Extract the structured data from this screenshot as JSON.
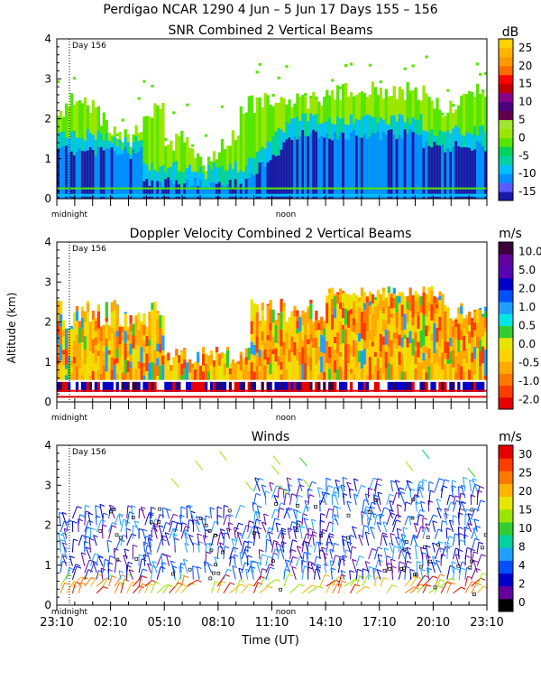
{
  "header": {
    "title": "Perdigao NCAR 1290    4 Jun –   5 Jun 17 Days 155 – 156"
  },
  "x_axis": {
    "label": "Time (UT)",
    "ticks": [
      "23:10",
      "02:10",
      "05:10",
      "08:10",
      "11:10",
      "14:10",
      "17:10",
      "20:10",
      "23:10"
    ],
    "midnight_label": "midnight",
    "noon_label": "noon",
    "day_label": "Day 156"
  },
  "chart_data": [
    {
      "type": "heatmap",
      "title": "SNR Combined 2 Vertical Beams",
      "ylabel": "",
      "ylim": [
        0,
        4
      ],
      "yticks": [
        "0",
        "1",
        "2",
        "3",
        "4"
      ],
      "colorbar": {
        "unit": "dB",
        "labels": [
          "-15",
          "-10",
          "-5",
          "0",
          "5",
          "10",
          "15",
          "20",
          "25"
        ],
        "colors": [
          "#1a1aa8",
          "#5a5aff",
          "#0090ff",
          "#00c0ff",
          "#00d2a0",
          "#00d25a",
          "#55e600",
          "#9ae600",
          "#a0e632",
          "#64004b",
          "#4b0082",
          "#8b008b",
          "#c00000",
          "#ff0000",
          "#ff6a00",
          "#ff9900",
          "#ffb400",
          "#ffd200"
        ]
      }
    },
    {
      "type": "heatmap",
      "title": "Doppler Velocity Combined 2 Vertical Beams",
      "ylabel": "Altitude (km)",
      "ylim": [
        0,
        4
      ],
      "yticks": [
        "0",
        "1",
        "2",
        "3",
        "4"
      ],
      "colorbar": {
        "unit": "m/s",
        "labels": [
          "-2.0",
          "-1.0",
          "-0.5",
          "0.0",
          "0.5",
          "1.0",
          "2.0",
          "5.0",
          "10.0"
        ],
        "colors": [
          "#e60000",
          "#ff3c00",
          "#ff7800",
          "#ffaa00",
          "#ffd200",
          "#e6e600",
          "#32cd32",
          "#00e6e6",
          "#1ea0ff",
          "#0050ff",
          "#0000c8",
          "#5a00b4",
          "#6400a0",
          "#3c003c"
        ]
      }
    },
    {
      "type": "scatter",
      "title": "Winds",
      "ylabel": "",
      "ylim": [
        0,
        4
      ],
      "yticks": [
        "0",
        "1",
        "2",
        "3",
        "4"
      ],
      "colorbar": {
        "unit": "m/s",
        "labels": [
          "0",
          "2",
          "4",
          "8",
          "10",
          "15",
          "20",
          "25",
          "30"
        ],
        "colors": [
          "#000000",
          "#6400a0",
          "#0000c8",
          "#0050ff",
          "#1ea0ff",
          "#00d2a0",
          "#32cd32",
          "#9ae600",
          "#e6e600",
          "#ffb400",
          "#ff7800",
          "#ff3c00",
          "#e60000"
        ]
      }
    }
  ]
}
